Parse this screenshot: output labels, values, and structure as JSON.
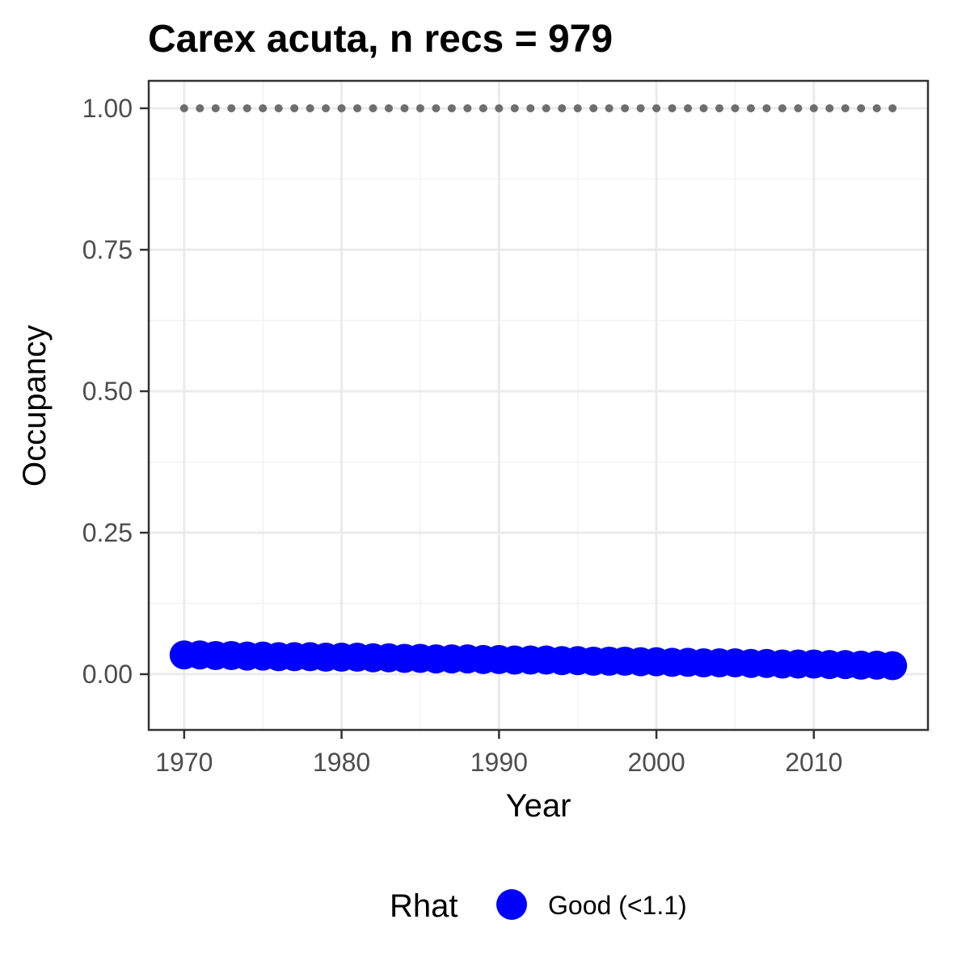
{
  "chart_data": {
    "type": "scatter",
    "title": "Carex acuta, n recs = 979",
    "xlabel": "Year",
    "ylabel": "Occupancy",
    "xlim": [
      1967.75,
      2017.25
    ],
    "ylim": [
      -0.0985,
      1.0485
    ],
    "x_ticks": [
      1970,
      1980,
      1990,
      2000,
      2010
    ],
    "x_tick_labels": [
      "1970",
      "1980",
      "1990",
      "2000",
      "2010"
    ],
    "y_ticks": [
      0,
      0.25,
      0.5,
      0.75,
      1.0
    ],
    "y_tick_labels": [
      "0.00",
      "0.25",
      "0.50",
      "0.75",
      "1.00"
    ],
    "grid": true,
    "legend": {
      "title": "Rhat",
      "position": "bottom",
      "entries": [
        {
          "label": "Good (<1.1)",
          "color": "#0000ff"
        }
      ]
    },
    "series": [
      {
        "name": "Good (<1.1)",
        "color": "#0000ff",
        "marker": "large-circle",
        "x": [
          1970,
          1971,
          1972,
          1973,
          1974,
          1975,
          1976,
          1977,
          1978,
          1979,
          1980,
          1981,
          1982,
          1983,
          1984,
          1985,
          1986,
          1987,
          1988,
          1989,
          1990,
          1991,
          1992,
          1993,
          1994,
          1995,
          1996,
          1997,
          1998,
          1999,
          2000,
          2001,
          2002,
          2003,
          2004,
          2005,
          2006,
          2007,
          2008,
          2009,
          2010,
          2011,
          2012,
          2013,
          2014,
          2015
        ],
        "y": [
          0.034,
          0.034,
          0.033,
          0.033,
          0.032,
          0.032,
          0.031,
          0.031,
          0.031,
          0.03,
          0.03,
          0.03,
          0.029,
          0.029,
          0.028,
          0.028,
          0.027,
          0.027,
          0.027,
          0.026,
          0.026,
          0.025,
          0.025,
          0.025,
          0.024,
          0.024,
          0.023,
          0.023,
          0.023,
          0.022,
          0.022,
          0.021,
          0.021,
          0.02,
          0.02,
          0.02,
          0.019,
          0.019,
          0.018,
          0.018,
          0.018,
          0.017,
          0.017,
          0.016,
          0.016,
          0.015
        ]
      },
      {
        "name": "",
        "color": "#6e6e6e",
        "marker": "small-dot",
        "x": [
          1970,
          1971,
          1972,
          1973,
          1974,
          1975,
          1976,
          1977,
          1978,
          1979,
          1980,
          1981,
          1982,
          1983,
          1984,
          1985,
          1986,
          1987,
          1988,
          1989,
          1990,
          1991,
          1992,
          1993,
          1994,
          1995,
          1996,
          1997,
          1998,
          1999,
          2000,
          2001,
          2002,
          2003,
          2004,
          2005,
          2006,
          2007,
          2008,
          2009,
          2010,
          2011,
          2012,
          2013,
          2014,
          2015
        ],
        "y": [
          1,
          1,
          1,
          1,
          1,
          1,
          1,
          1,
          1,
          1,
          1,
          1,
          1,
          1,
          1,
          1,
          1,
          1,
          1,
          1,
          1,
          1,
          1,
          1,
          1,
          1,
          1,
          1,
          1,
          1,
          1,
          1,
          1,
          1,
          1,
          1,
          1,
          1,
          1,
          1,
          1,
          1,
          1,
          1,
          1,
          1
        ]
      }
    ]
  }
}
